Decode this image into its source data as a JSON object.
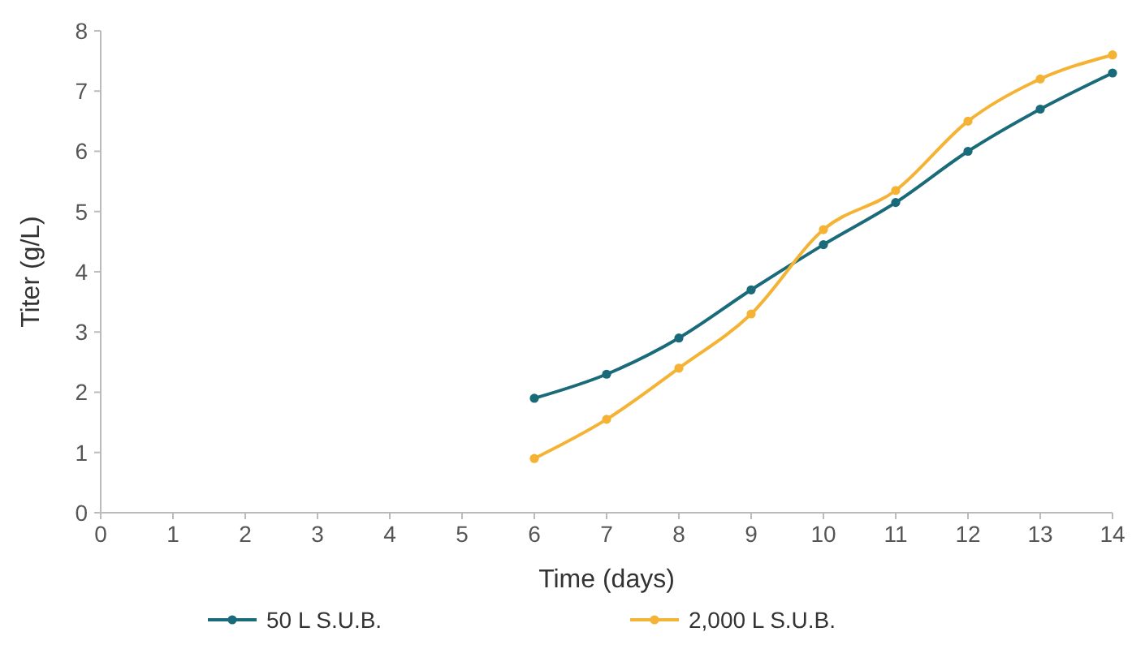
{
  "chart_data": {
    "type": "line",
    "xlabel": "Time (days)",
    "ylabel": "Titer (g/L)",
    "xlim": [
      0,
      14
    ],
    "xticks": [
      0,
      1,
      2,
      3,
      4,
      5,
      6,
      7,
      8,
      9,
      10,
      11,
      12,
      13,
      14
    ],
    "ylim": [
      0,
      8
    ],
    "yticks": [
      0,
      1,
      2,
      3,
      4,
      5,
      6,
      7,
      8
    ],
    "x": [
      6,
      7,
      8,
      9,
      10,
      11,
      12,
      13,
      14
    ],
    "series": [
      {
        "name": "50 L S.U.B.",
        "color": "#1a6b7a",
        "values": [
          1.9,
          2.3,
          2.9,
          3.7,
          4.45,
          5.15,
          6.0,
          6.7,
          7.3
        ]
      },
      {
        "name": "2,000 L S.U.B.",
        "color": "#f5b335",
        "values": [
          0.9,
          1.55,
          2.4,
          3.3,
          4.7,
          5.35,
          6.5,
          7.2,
          7.6
        ]
      }
    ],
    "marker": "circle",
    "line_style": "solid",
    "grid": false,
    "legend": "bottom"
  }
}
